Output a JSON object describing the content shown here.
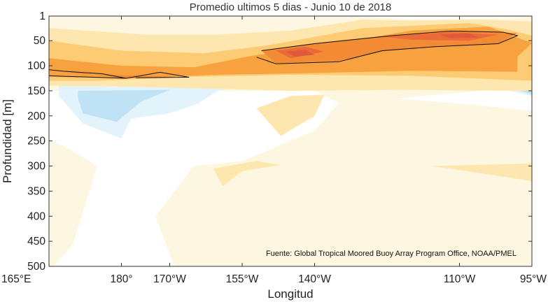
{
  "chart_data": {
    "type": "heatmap",
    "title": "Promedio ultimos 5 dias - Junio 10 de 2018",
    "xlabel": "Longitud",
    "ylabel": "Profundidad [m]",
    "source_note": "Fuente: Global Tropical Moored Buoy Array Program Office, NOAA/PMEL",
    "x_ticks": [
      {
        "value": 165,
        "label": "165°E"
      },
      {
        "value": 180,
        "label": "180°"
      },
      {
        "value": 190,
        "label": "170°W"
      },
      {
        "value": 205,
        "label": "155°W"
      },
      {
        "value": 220,
        "label": "140°W"
      },
      {
        "value": 250,
        "label": "110°W"
      },
      {
        "value": 265,
        "label": "95°W"
      }
    ],
    "y_ticks": [
      1,
      50,
      100,
      150,
      200,
      250,
      300,
      350,
      400,
      450,
      500
    ],
    "xlim": [
      165,
      265
    ],
    "ylim": [
      1,
      500
    ],
    "y_reversed": true,
    "palette": {
      "level_-2": "#bfe3f5",
      "level_-1": "#e3f3fb",
      "level_0": "#ffffff",
      "level_1": "#fdf7e1",
      "level_2": "#fde7ae",
      "level_3": "#fccb74",
      "level_4": "#f8a23f",
      "level_5": "#f38a34",
      "level_6": "#eb6a3a",
      "level_7": "#e05a3a",
      "contour_line": "#111111"
    },
    "contour_regions": [
      {
        "level": 1,
        "points": [
          [
            165,
            1
          ],
          [
            265,
            1
          ],
          [
            265,
            500
          ],
          [
            165,
            500
          ]
        ]
      },
      {
        "level": 0,
        "points": [
          [
            165,
            150
          ],
          [
            220,
            150
          ],
          [
            225,
            175
          ],
          [
            220,
            230
          ],
          [
            205,
            290
          ],
          [
            195,
            300
          ],
          [
            187,
            400
          ],
          [
            191,
            500
          ],
          [
            166,
            500
          ],
          [
            170,
            455
          ],
          [
            175,
            300
          ],
          [
            168,
            260
          ],
          [
            165,
            250
          ]
        ]
      },
      {
        "level": 0,
        "points": [
          [
            265,
            5
          ],
          [
            240,
            8
          ],
          [
            228,
            1
          ]
        ]
      },
      {
        "level": 0,
        "points": [
          [
            237,
            165
          ],
          [
            255,
            150
          ],
          [
            265,
            150
          ],
          [
            265,
            190
          ],
          [
            255,
            180
          ]
        ]
      },
      {
        "level": -1,
        "points": [
          [
            167,
            140
          ],
          [
            207,
            140
          ],
          [
            200,
            150
          ],
          [
            196,
            175
          ],
          [
            190,
            195
          ],
          [
            182,
            205
          ],
          [
            180,
            245
          ],
          [
            172,
            215
          ],
          [
            167,
            160
          ]
        ]
      },
      {
        "level": -1,
        "points": [
          [
            258,
            145
          ],
          [
            265,
            145
          ],
          [
            265,
            160
          ]
        ]
      },
      {
        "level": -2,
        "points": [
          [
            171,
            150
          ],
          [
            190,
            148
          ],
          [
            184,
            172
          ],
          [
            179,
            212
          ],
          [
            172,
            195
          ],
          [
            171,
            165
          ]
        ]
      },
      {
        "level": -2,
        "points": [
          [
            261,
            146
          ],
          [
            265,
            146
          ],
          [
            265,
            157
          ]
        ]
      },
      {
        "level": 2,
        "points": [
          [
            165,
            25
          ],
          [
            185,
            38
          ],
          [
            200,
            38
          ],
          [
            215,
            30
          ],
          [
            230,
            8
          ],
          [
            240,
            10
          ],
          [
            255,
            8
          ],
          [
            265,
            12
          ],
          [
            265,
            150
          ],
          [
            238,
            148
          ],
          [
            215,
            150
          ],
          [
            195,
            145
          ],
          [
            175,
            140
          ],
          [
            165,
            140
          ]
        ]
      },
      {
        "level": 2,
        "points": [
          [
            215,
            160
          ],
          [
            222,
            158
          ],
          [
            220,
            200
          ],
          [
            213,
            240
          ],
          [
            208,
            185
          ]
        ]
      },
      {
        "level": 2,
        "points": [
          [
            199,
            305
          ],
          [
            208,
            290
          ],
          [
            213,
            298
          ],
          [
            205,
            310
          ],
          [
            201,
            340
          ]
        ]
      },
      {
        "level": 2,
        "points": [
          [
            244,
            300
          ],
          [
            265,
            295
          ],
          [
            265,
            330
          ],
          [
            248,
            305
          ]
        ]
      },
      {
        "level": 3,
        "points": [
          [
            165,
            50
          ],
          [
            180,
            70
          ],
          [
            197,
            75
          ],
          [
            210,
            60
          ],
          [
            230,
            25
          ],
          [
            252,
            15
          ],
          [
            260,
            28
          ],
          [
            265,
            40
          ],
          [
            265,
            130
          ],
          [
            240,
            120
          ],
          [
            215,
            118
          ],
          [
            195,
            122
          ],
          [
            175,
            130
          ],
          [
            165,
            130
          ]
        ]
      },
      {
        "level": 4,
        "points": [
          [
            165,
            85
          ],
          [
            180,
            100
          ],
          [
            195,
            103
          ],
          [
            207,
            80
          ],
          [
            222,
            60
          ],
          [
            240,
            30
          ],
          [
            256,
            22
          ],
          [
            265,
            55
          ],
          [
            262,
            82
          ],
          [
            262,
            112
          ],
          [
            240,
            110
          ],
          [
            218,
            115
          ],
          [
            200,
            118
          ],
          [
            180,
            125
          ],
          [
            165,
            122
          ]
        ]
      },
      {
        "level": 5,
        "points": [
          [
            166,
            108
          ],
          [
            181,
            125
          ],
          [
            192,
            122
          ],
          [
            172,
            117
          ]
        ]
      },
      {
        "level": 5,
        "points": [
          [
            209,
            70
          ],
          [
            220,
            55
          ],
          [
            235,
            40
          ],
          [
            250,
            30
          ],
          [
            262,
            35
          ],
          [
            258,
            56
          ],
          [
            245,
            62
          ],
          [
            235,
            70
          ],
          [
            225,
            90
          ],
          [
            212,
            95
          ]
        ]
      },
      {
        "level": 6,
        "points": [
          [
            212,
            70
          ],
          [
            218,
            62
          ],
          [
            222,
            72
          ],
          [
            215,
            85
          ]
        ]
      },
      {
        "level": 6,
        "points": [
          [
            234,
            42
          ],
          [
            248,
            33
          ],
          [
            258,
            38
          ],
          [
            252,
            50
          ],
          [
            240,
            48
          ]
        ]
      },
      {
        "level": 7,
        "points": [
          [
            214,
            72
          ],
          [
            218,
            68
          ],
          [
            220,
            78
          ],
          [
            216,
            82
          ]
        ]
      },
      {
        "level": 7,
        "points": [
          [
            246,
            38
          ],
          [
            252,
            35
          ],
          [
            254,
            44
          ],
          [
            248,
            45
          ]
        ]
      }
    ],
    "contour_lines": [
      [
        [
          165,
          108
        ],
        [
          168,
          111
        ],
        [
          176,
          116
        ],
        [
          181,
          125
        ],
        [
          168,
          121
        ],
        [
          165,
          120
        ]
      ],
      [
        [
          181,
          125
        ],
        [
          188,
          113
        ],
        [
          194,
          123
        ],
        [
          183,
          124
        ]
      ],
      [
        [
          209,
          70
        ],
        [
          220,
          56
        ],
        [
          236,
          40
        ],
        [
          248,
          31
        ],
        [
          259,
          33
        ],
        [
          262,
          40
        ],
        [
          258,
          56
        ],
        [
          245,
          62
        ],
        [
          234,
          70
        ],
        [
          225,
          92
        ],
        [
          212,
          96
        ],
        [
          208,
          83
        ]
      ]
    ]
  }
}
